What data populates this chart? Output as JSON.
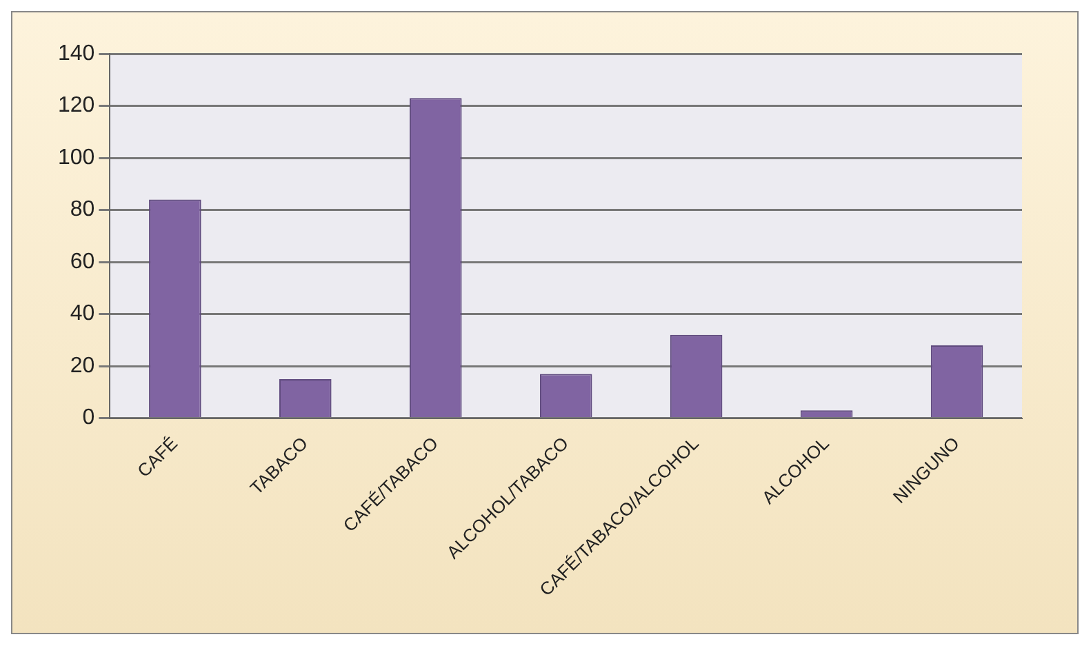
{
  "chart_data": {
    "type": "bar",
    "categories": [
      "CAFÉ",
      "TABACO",
      "CAFÉ/TABACO",
      "ALCOHOL/TABACO",
      "CAFÉ/TABACO/ALCOHOL",
      "ALCOHOL",
      "NINGUNO"
    ],
    "values": [
      84,
      15,
      123,
      17,
      32,
      3,
      28
    ],
    "color": "#8064a2",
    "ylim": [
      0,
      140
    ],
    "yticks": [
      0,
      20,
      40,
      60,
      80,
      100,
      120,
      140
    ],
    "grid": "y",
    "legend": false
  }
}
